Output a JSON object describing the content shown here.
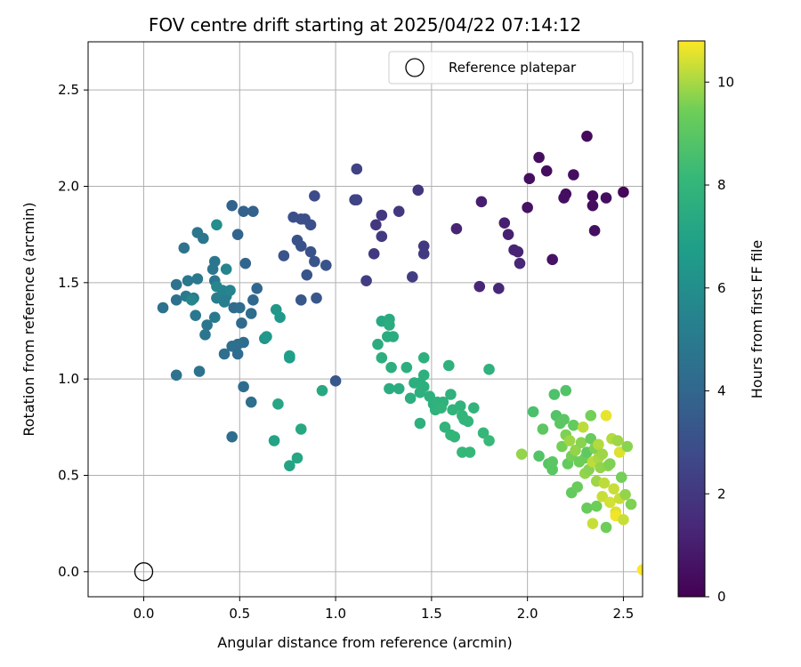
{
  "chart_data": {
    "type": "scatter",
    "title": "FOV centre drift starting at 2025/04/22 07:14:12",
    "xlabel": "Angular distance from reference (arcmin)",
    "ylabel": "Rotation from reference (arcmin)",
    "xlim": [
      -0.29,
      2.6
    ],
    "ylim": [
      -0.13,
      2.75
    ],
    "xticks": [
      "0.0",
      "0.5",
      "1.0",
      "1.5",
      "2.0",
      "2.5"
    ],
    "yticks": [
      "0.0",
      "0.5",
      "1.0",
      "1.5",
      "2.0",
      "2.5"
    ],
    "grid": true,
    "legend": {
      "position": "top-right",
      "entries": [
        "Reference platepar"
      ]
    },
    "reference_point": {
      "x": 0.0,
      "y": 0.0
    },
    "colorbar": {
      "label": "Hours from first FF file",
      "range": [
        0,
        10.8
      ],
      "ticks": [
        "0",
        "2",
        "4",
        "6",
        "8",
        "10"
      ],
      "colormap": "viridis"
    },
    "points": [
      [
        2.31,
        2.26,
        0.3
      ],
      [
        2.06,
        2.15,
        0.4
      ],
      [
        2.1,
        2.08,
        0.4
      ],
      [
        2.24,
        2.06,
        0.5
      ],
      [
        2.01,
        2.04,
        0.5
      ],
      [
        2.5,
        1.97,
        0.2
      ],
      [
        2.2,
        1.96,
        0.4
      ],
      [
        2.34,
        1.95,
        0.3
      ],
      [
        2.19,
        1.94,
        0.5
      ],
      [
        2.41,
        1.94,
        0.4
      ],
      [
        2.34,
        1.9,
        0.4
      ],
      [
        2.0,
        1.89,
        0.6
      ],
      [
        2.35,
        1.77,
        0.5
      ],
      [
        2.13,
        1.62,
        0.6
      ],
      [
        1.76,
        1.92,
        1.0
      ],
      [
        1.88,
        1.81,
        1.1
      ],
      [
        1.63,
        1.78,
        1.2
      ],
      [
        1.9,
        1.75,
        1.1
      ],
      [
        1.93,
        1.67,
        1.2
      ],
      [
        1.95,
        1.66,
        1.2
      ],
      [
        1.96,
        1.6,
        1.3
      ],
      [
        1.75,
        1.48,
        1.3
      ],
      [
        1.85,
        1.47,
        1.3
      ],
      [
        1.43,
        1.98,
        1.9
      ],
      [
        1.33,
        1.87,
        2.0
      ],
      [
        1.24,
        1.85,
        2.0
      ],
      [
        1.21,
        1.8,
        2.0
      ],
      [
        1.24,
        1.74,
        2.1
      ],
      [
        1.46,
        1.69,
        2.0
      ],
      [
        1.46,
        1.65,
        2.1
      ],
      [
        1.2,
        1.65,
        2.1
      ],
      [
        1.4,
        1.53,
        2.2
      ],
      [
        1.16,
        1.51,
        2.2
      ],
      [
        1.11,
        2.09,
        2.4
      ],
      [
        1.1,
        1.93,
        2.4
      ],
      [
        1.11,
        1.93,
        2.5
      ],
      [
        0.89,
        1.95,
        2.8
      ],
      [
        0.78,
        1.84,
        3.0
      ],
      [
        0.82,
        1.83,
        3.0
      ],
      [
        0.84,
        1.83,
        3.0
      ],
      [
        0.87,
        1.8,
        3.0
      ],
      [
        0.8,
        1.72,
        3.1
      ],
      [
        0.82,
        1.69,
        3.1
      ],
      [
        0.73,
        1.64,
        3.2
      ],
      [
        0.87,
        1.66,
        3.1
      ],
      [
        0.89,
        1.61,
        3.2
      ],
      [
        0.95,
        1.59,
        3.2
      ],
      [
        0.85,
        1.54,
        3.2
      ],
      [
        0.9,
        1.42,
        3.3
      ],
      [
        0.82,
        1.41,
        3.3
      ],
      [
        1.0,
        0.99,
        3.3
      ],
      [
        0.46,
        1.9,
        3.8
      ],
      [
        0.52,
        1.87,
        3.8
      ],
      [
        0.57,
        1.87,
        3.8
      ],
      [
        0.49,
        1.75,
        3.9
      ],
      [
        0.53,
        1.6,
        3.9
      ],
      [
        0.59,
        1.47,
        4.0
      ],
      [
        0.57,
        1.41,
        4.1
      ],
      [
        0.47,
        1.37,
        4.2
      ],
      [
        0.5,
        1.37,
        4.3
      ],
      [
        0.56,
        1.34,
        4.3
      ],
      [
        0.51,
        1.29,
        4.2
      ],
      [
        0.52,
        1.19,
        4.3
      ],
      [
        0.49,
        1.18,
        4.4
      ],
      [
        0.46,
        1.17,
        4.4
      ],
      [
        0.42,
        1.13,
        4.4
      ],
      [
        0.49,
        1.13,
        4.3
      ],
      [
        0.52,
        0.96,
        4.3
      ],
      [
        0.56,
        0.88,
        4.4
      ],
      [
        0.46,
        0.7,
        4.3
      ],
      [
        0.1,
        1.37,
        4.5
      ],
      [
        0.17,
        1.41,
        4.5
      ],
      [
        0.17,
        1.49,
        4.6
      ],
      [
        0.21,
        1.68,
        4.6
      ],
      [
        0.17,
        1.02,
        4.6
      ],
      [
        0.29,
        1.04,
        4.6
      ],
      [
        0.28,
        1.76,
        4.7
      ],
      [
        0.31,
        1.73,
        4.7
      ],
      [
        0.36,
        1.57,
        4.7
      ],
      [
        0.37,
        1.61,
        4.8
      ],
      [
        0.37,
        1.51,
        4.8
      ],
      [
        0.23,
        1.51,
        4.9
      ],
      [
        0.28,
        1.52,
        4.9
      ],
      [
        0.22,
        1.43,
        5.0
      ],
      [
        0.26,
        1.42,
        5.0
      ],
      [
        0.27,
        1.33,
        4.9
      ],
      [
        0.33,
        1.28,
        4.8
      ],
      [
        0.32,
        1.23,
        4.8
      ],
      [
        0.37,
        1.32,
        5.0
      ],
      [
        0.38,
        1.42,
        5.2
      ],
      [
        0.42,
        1.4,
        5.2
      ],
      [
        0.43,
        1.43,
        5.2
      ],
      [
        0.41,
        1.46,
        5.4
      ],
      [
        0.45,
        1.46,
        5.5
      ],
      [
        0.43,
        1.57,
        5.5
      ],
      [
        0.38,
        1.48,
        5.6
      ],
      [
        0.25,
        1.41,
        5.6
      ],
      [
        0.38,
        1.8,
        6.0
      ],
      [
        0.63,
        1.21,
        6.2
      ],
      [
        0.64,
        1.22,
        6.5
      ],
      [
        0.69,
        1.36,
        6.4
      ],
      [
        0.71,
        1.32,
        6.5
      ],
      [
        0.76,
        1.11,
        6.7
      ],
      [
        0.76,
        1.12,
        6.8
      ],
      [
        0.7,
        0.87,
        7.2
      ],
      [
        0.68,
        0.68,
        7.0
      ],
      [
        0.76,
        0.55,
        7.1
      ],
      [
        0.8,
        0.59,
        7.2
      ],
      [
        0.82,
        0.74,
        7.3
      ],
      [
        0.93,
        0.94,
        7.3
      ],
      [
        1.24,
        1.3,
        7.3
      ],
      [
        1.28,
        1.31,
        7.4
      ],
      [
        1.28,
        1.28,
        7.5
      ],
      [
        1.27,
        1.22,
        7.5
      ],
      [
        1.3,
        1.22,
        7.5
      ],
      [
        1.22,
        1.18,
        7.5
      ],
      [
        1.24,
        1.11,
        7.6
      ],
      [
        1.29,
        1.06,
        7.6
      ],
      [
        1.37,
        1.06,
        7.6
      ],
      [
        1.46,
        1.11,
        7.7
      ],
      [
        1.41,
        0.98,
        7.6
      ],
      [
        1.44,
        0.98,
        7.6
      ],
      [
        1.46,
        0.96,
        7.7
      ],
      [
        1.46,
        1.02,
        7.7
      ],
      [
        1.28,
        0.95,
        7.5
      ],
      [
        1.33,
        0.95,
        7.5
      ],
      [
        1.39,
        0.9,
        7.6
      ],
      [
        1.44,
        0.93,
        7.7
      ],
      [
        1.49,
        0.91,
        7.7
      ],
      [
        1.51,
        0.87,
        7.7
      ],
      [
        1.53,
        0.88,
        7.8
      ],
      [
        1.56,
        0.88,
        7.8
      ],
      [
        1.52,
        0.84,
        7.8
      ],
      [
        1.55,
        0.85,
        7.9
      ],
      [
        1.6,
        0.92,
        7.8
      ],
      [
        1.59,
        1.07,
        7.8
      ],
      [
        1.61,
        0.84,
        7.9
      ],
      [
        1.65,
        0.86,
        7.9
      ],
      [
        1.66,
        0.81,
        8.0
      ],
      [
        1.67,
        0.79,
        8.0
      ],
      [
        1.69,
        0.78,
        8.0
      ],
      [
        1.72,
        0.85,
        7.9
      ],
      [
        1.8,
        1.05,
        7.8
      ],
      [
        1.44,
        0.77,
        7.7
      ],
      [
        1.57,
        0.75,
        7.9
      ],
      [
        1.6,
        0.71,
        8.0
      ],
      [
        1.62,
        0.7,
        8.0
      ],
      [
        1.66,
        0.62,
        8.1
      ],
      [
        1.7,
        0.62,
        8.1
      ],
      [
        1.77,
        0.72,
        8.1
      ],
      [
        1.8,
        0.68,
        8.2
      ],
      [
        1.97,
        0.61,
        9.8
      ],
      [
        2.03,
        0.83,
        8.6
      ],
      [
        2.06,
        0.6,
        8.8
      ],
      [
        2.08,
        0.74,
        9.0
      ],
      [
        2.11,
        0.56,
        8.9
      ],
      [
        2.13,
        0.53,
        9.0
      ],
      [
        2.13,
        0.57,
        9.0
      ],
      [
        2.14,
        0.92,
        8.7
      ],
      [
        2.15,
        0.81,
        8.8
      ],
      [
        2.17,
        0.77,
        9.0
      ],
      [
        2.18,
        0.65,
        9.5
      ],
      [
        2.19,
        0.79,
        9.0
      ],
      [
        2.2,
        0.94,
        8.8
      ],
      [
        2.2,
        0.71,
        9.6
      ],
      [
        2.21,
        0.56,
        9.2
      ],
      [
        2.22,
        0.68,
        9.9
      ],
      [
        2.23,
        0.6,
        9.5
      ],
      [
        2.23,
        0.41,
        9.2
      ],
      [
        2.24,
        0.76,
        9.2
      ],
      [
        2.25,
        0.63,
        9.8
      ],
      [
        2.26,
        0.44,
        9.3
      ],
      [
        2.27,
        0.57,
        9.4
      ],
      [
        2.28,
        0.67,
        9.7
      ],
      [
        2.29,
        0.75,
        10.2
      ],
      [
        2.3,
        0.51,
        9.8
      ],
      [
        2.3,
        0.59,
        9.4
      ],
      [
        2.31,
        0.33,
        9.3
      ],
      [
        2.31,
        0.62,
        9.1
      ],
      [
        2.32,
        0.53,
        9.7
      ],
      [
        2.33,
        0.81,
        9.5
      ],
      [
        2.33,
        0.69,
        9.3
      ],
      [
        2.34,
        0.57,
        10.2
      ],
      [
        2.34,
        0.25,
        10.3
      ],
      [
        2.35,
        0.64,
        9.6
      ],
      [
        2.36,
        0.34,
        9.4
      ],
      [
        2.36,
        0.47,
        9.9
      ],
      [
        2.37,
        0.59,
        10.0
      ],
      [
        2.37,
        0.66,
        10.1
      ],
      [
        2.38,
        0.54,
        9.8
      ],
      [
        2.39,
        0.39,
        10.3
      ],
      [
        2.39,
        0.61,
        9.9
      ],
      [
        2.4,
        0.46,
        10.2
      ],
      [
        2.41,
        0.81,
        10.6
      ],
      [
        2.41,
        0.23,
        9.4
      ],
      [
        2.42,
        0.55,
        9.7
      ],
      [
        2.43,
        0.36,
        10.4
      ],
      [
        2.43,
        0.56,
        9.6
      ],
      [
        2.44,
        0.69,
        10.1
      ],
      [
        2.45,
        0.43,
        10.3
      ],
      [
        2.46,
        0.31,
        10.5
      ],
      [
        2.46,
        0.29,
        10.7
      ],
      [
        2.47,
        0.68,
        9.9
      ],
      [
        2.48,
        0.62,
        10.5
      ],
      [
        2.48,
        0.38,
        10.3
      ],
      [
        2.49,
        0.49,
        9.5
      ],
      [
        2.5,
        0.27,
        10.3
      ],
      [
        2.51,
        0.4,
        9.8
      ],
      [
        2.52,
        0.65,
        9.7
      ],
      [
        2.54,
        0.35,
        9.6
      ],
      [
        2.6,
        0.01,
        10.8
      ]
    ]
  }
}
